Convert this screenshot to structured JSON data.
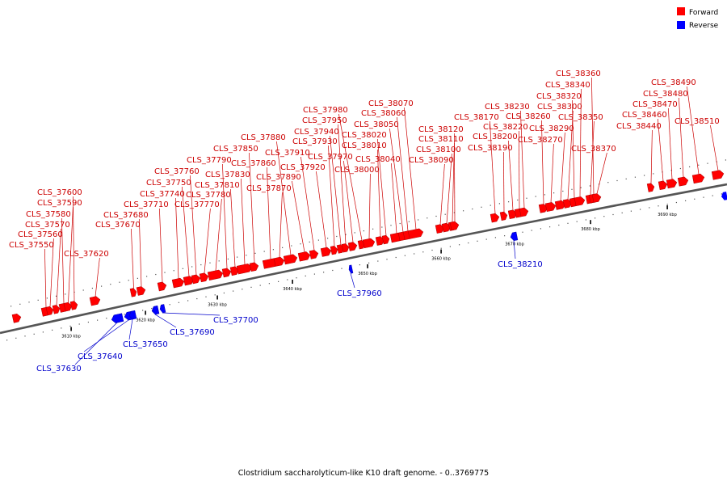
{
  "caption": "Clostridium saccharolyticum-like K10 draft genome. - 0..3769775",
  "legend": [
    {
      "label": "Forward",
      "color": "#ff0000"
    },
    {
      "label": "Reverse",
      "color": "#0000ff"
    }
  ],
  "colors": {
    "forward": "#ff0000",
    "forward_label": "#cc0000",
    "reverse": "#0000ff",
    "reverse_label": "#0000cc",
    "backbone": "#555555"
  },
  "ticks": [
    "3610 kbp",
    "3620 kbp",
    "3630 kbp",
    "3640 kbp",
    "3650 kbp",
    "3660 kbp",
    "3670 kbp",
    "3680 kbp",
    "3690 kbp"
  ],
  "forward_genes": [
    "CLS_37550",
    "CLS_37560",
    "CLS_37570",
    "CLS_37580",
    "CLS_37590",
    "CLS_37600",
    "CLS_37620",
    "CLS_37670",
    "CLS_37680",
    "CLS_37710",
    "CLS_37740",
    "CLS_37750",
    "CLS_37760",
    "CLS_37770",
    "CLS_37780",
    "CLS_37790",
    "CLS_37810",
    "CLS_37830",
    "CLS_37850",
    "CLS_37860",
    "CLS_37870",
    "CLS_37880",
    "CLS_37890",
    "CLS_37910",
    "CLS_37920",
    "CLS_37930",
    "CLS_37940",
    "CLS_37950",
    "CLS_37970",
    "CLS_37980",
    "CLS_38000",
    "CLS_38010",
    "CLS_38020",
    "CLS_38040",
    "CLS_38050",
    "CLS_38060",
    "CLS_38070",
    "CLS_38090",
    "CLS_38100",
    "CLS_38110",
    "CLS_38120",
    "CLS_38170",
    "CLS_38190",
    "CLS_38200",
    "CLS_38220",
    "CLS_38230",
    "CLS_38260",
    "CLS_38270",
    "CLS_38290",
    "CLS_38300",
    "CLS_38320",
    "CLS_38340",
    "CLS_38350",
    "CLS_38360",
    "CLS_38370",
    "CLS_38440",
    "CLS_38460",
    "CLS_38470",
    "CLS_38480",
    "CLS_38490",
    "CLS_38510"
  ],
  "reverse_genes": [
    "CLS_37630",
    "CLS_37640",
    "CLS_37650",
    "CLS_37690",
    "CLS_37700",
    "CLS_37960",
    "CLS_38210"
  ]
}
